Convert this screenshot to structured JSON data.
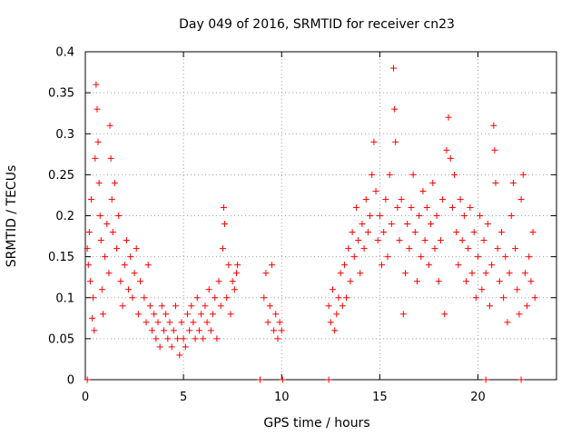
{
  "chart_data": {
    "type": "scatter",
    "title": "Day 049 of 2016, SRMTID for receiver cn23",
    "xlabel": "GPS time / hours",
    "ylabel": "SRMTID / TECUs",
    "xlim": [
      0,
      24
    ],
    "ylim": [
      0,
      0.4
    ],
    "xticks": [
      0,
      5,
      10,
      15,
      20
    ],
    "xtick_labels": [
      "0",
      "5",
      "10",
      "15",
      "20"
    ],
    "yticks": [
      0,
      0.05,
      0.1,
      0.15,
      0.2,
      0.25,
      0.3,
      0.35,
      0.4
    ],
    "ytick_labels": [
      "0",
      "0.05",
      "0.1",
      "0.15",
      "0.2",
      "0.25",
      "0.3",
      "0.35",
      "0.4"
    ],
    "grid": true,
    "marker": "+",
    "color": "#ff0000",
    "series": [
      {
        "name": "SRMTID",
        "points": [
          [
            0.1,
            0.16
          ],
          [
            0.15,
            0.14
          ],
          [
            0.2,
            0.18
          ],
          [
            0.25,
            0.12
          ],
          [
            0.3,
            0.22
          ],
          [
            0.35,
            0.075
          ],
          [
            0.4,
            0.1
          ],
          [
            0.45,
            0.06
          ],
          [
            0.5,
            0.27
          ],
          [
            0.55,
            0.36
          ],
          [
            0.6,
            0.33
          ],
          [
            0.65,
            0.29
          ],
          [
            0.7,
            0.24
          ],
          [
            0.75,
            0.2
          ],
          [
            0.8,
            0.17
          ],
          [
            0.85,
            0.11
          ],
          [
            0.9,
            0.08
          ],
          [
            1.0,
            0.15
          ],
          [
            1.1,
            0.19
          ],
          [
            1.2,
            0.13
          ],
          [
            1.25,
            0.31
          ],
          [
            1.3,
            0.27
          ],
          [
            1.35,
            0.22
          ],
          [
            1.4,
            0.18
          ],
          [
            1.5,
            0.24
          ],
          [
            1.6,
            0.16
          ],
          [
            1.7,
            0.2
          ],
          [
            1.8,
            0.12
          ],
          [
            1.9,
            0.09
          ],
          [
            2.0,
            0.14
          ],
          [
            2.1,
            0.17
          ],
          [
            2.2,
            0.11
          ],
          [
            2.3,
            0.15
          ],
          [
            2.4,
            0.1
          ],
          [
            2.5,
            0.13
          ],
          [
            2.6,
            0.16
          ],
          [
            2.7,
            0.08
          ],
          [
            2.8,
            0.12
          ],
          [
            3.0,
            0.1
          ],
          [
            3.1,
            0.07
          ],
          [
            3.2,
            0.14
          ],
          [
            3.3,
            0.09
          ],
          [
            3.4,
            0.06
          ],
          [
            3.5,
            0.08
          ],
          [
            3.6,
            0.05
          ],
          [
            3.7,
            0.07
          ],
          [
            3.8,
            0.04
          ],
          [
            3.9,
            0.09
          ],
          [
            4.0,
            0.06
          ],
          [
            4.1,
            0.08
          ],
          [
            4.2,
            0.05
          ],
          [
            4.3,
            0.07
          ],
          [
            4.4,
            0.04
          ],
          [
            4.5,
            0.06
          ],
          [
            4.6,
            0.09
          ],
          [
            4.7,
            0.05
          ],
          [
            4.8,
            0.03
          ],
          [
            4.9,
            0.07
          ],
          [
            5.0,
            0.05
          ],
          [
            5.1,
            0.04
          ],
          [
            5.2,
            0.08
          ],
          [
            5.3,
            0.06
          ],
          [
            5.4,
            0.09
          ],
          [
            5.5,
            0.07
          ],
          [
            5.6,
            0.05
          ],
          [
            5.7,
            0.1
          ],
          [
            5.8,
            0.06
          ],
          [
            5.9,
            0.08
          ],
          [
            6.0,
            0.05
          ],
          [
            6.1,
            0.09
          ],
          [
            6.2,
            0.07
          ],
          [
            6.3,
            0.11
          ],
          [
            6.4,
            0.06
          ],
          [
            6.5,
            0.08
          ],
          [
            6.6,
            0.1
          ],
          [
            6.7,
            0.05
          ],
          [
            6.8,
            0.12
          ],
          [
            6.9,
            0.09
          ],
          [
            7.0,
            0.16
          ],
          [
            7.05,
            0.21
          ],
          [
            7.1,
            0.19
          ],
          [
            7.2,
            0.1
          ],
          [
            7.3,
            0.14
          ],
          [
            7.4,
            0.08
          ],
          [
            7.5,
            0.12
          ],
          [
            7.6,
            0.11
          ],
          [
            7.7,
            0.13
          ],
          [
            7.75,
            0.14
          ],
          [
            9.1,
            0.1
          ],
          [
            9.2,
            0.13
          ],
          [
            9.3,
            0.07
          ],
          [
            9.4,
            0.09
          ],
          [
            9.5,
            0.14
          ],
          [
            9.6,
            0.06
          ],
          [
            9.7,
            0.08
          ],
          [
            9.8,
            0.05
          ],
          [
            9.9,
            0.07
          ],
          [
            10.0,
            0.06
          ],
          [
            12.4,
            0.09
          ],
          [
            12.5,
            0.07
          ],
          [
            12.6,
            0.11
          ],
          [
            12.7,
            0.06
          ],
          [
            12.8,
            0.08
          ],
          [
            12.9,
            0.1
          ],
          [
            13.0,
            0.13
          ],
          [
            13.1,
            0.09
          ],
          [
            13.2,
            0.14
          ],
          [
            13.3,
            0.1
          ],
          [
            13.4,
            0.16
          ],
          [
            13.5,
            0.12
          ],
          [
            13.6,
            0.18
          ],
          [
            13.7,
            0.15
          ],
          [
            13.8,
            0.21
          ],
          [
            13.9,
            0.17
          ],
          [
            14.0,
            0.13
          ],
          [
            14.1,
            0.19
          ],
          [
            14.2,
            0.16
          ],
          [
            14.3,
            0.22
          ],
          [
            14.4,
            0.18
          ],
          [
            14.5,
            0.2
          ],
          [
            14.6,
            0.25
          ],
          [
            14.7,
            0.29
          ],
          [
            14.8,
            0.23
          ],
          [
            14.9,
            0.17
          ],
          [
            15.0,
            0.2
          ],
          [
            15.1,
            0.14
          ],
          [
            15.2,
            0.18
          ],
          [
            15.3,
            0.22
          ],
          [
            15.4,
            0.15
          ],
          [
            15.5,
            0.25
          ],
          [
            15.6,
            0.19
          ],
          [
            15.7,
            0.38
          ],
          [
            15.75,
            0.33
          ],
          [
            15.8,
            0.29
          ],
          [
            15.9,
            0.21
          ],
          [
            16.0,
            0.17
          ],
          [
            16.1,
            0.22
          ],
          [
            16.2,
            0.08
          ],
          [
            16.3,
            0.13
          ],
          [
            16.4,
            0.19
          ],
          [
            16.5,
            0.16
          ],
          [
            16.6,
            0.21
          ],
          [
            16.7,
            0.25
          ],
          [
            16.8,
            0.18
          ],
          [
            16.9,
            0.12
          ],
          [
            17.0,
            0.2
          ],
          [
            17.1,
            0.15
          ],
          [
            17.2,
            0.23
          ],
          [
            17.3,
            0.17
          ],
          [
            17.4,
            0.21
          ],
          [
            17.5,
            0.14
          ],
          [
            17.6,
            0.19
          ],
          [
            17.7,
            0.24
          ],
          [
            17.8,
            0.16
          ],
          [
            17.9,
            0.2
          ],
          [
            18.0,
            0.12
          ],
          [
            18.1,
            0.17
          ],
          [
            18.2,
            0.22
          ],
          [
            18.3,
            0.08
          ],
          [
            18.4,
            0.28
          ],
          [
            18.5,
            0.32
          ],
          [
            18.6,
            0.27
          ],
          [
            18.7,
            0.21
          ],
          [
            18.8,
            0.25
          ],
          [
            18.9,
            0.18
          ],
          [
            19.0,
            0.14
          ],
          [
            19.1,
            0.22
          ],
          [
            19.2,
            0.17
          ],
          [
            19.3,
            0.2
          ],
          [
            19.4,
            0.12
          ],
          [
            19.5,
            0.16
          ],
          [
            19.6,
            0.21
          ],
          [
            19.7,
            0.13
          ],
          [
            19.8,
            0.18
          ],
          [
            19.9,
            0.1
          ],
          [
            20.0,
            0.15
          ],
          [
            20.1,
            0.2
          ],
          [
            20.2,
            0.11
          ],
          [
            20.3,
            0.17
          ],
          [
            20.4,
            0.13
          ],
          [
            20.5,
            0.19
          ],
          [
            20.6,
            0.09
          ],
          [
            20.7,
            0.14
          ],
          [
            20.8,
            0.31
          ],
          [
            20.85,
            0.28
          ],
          [
            20.9,
            0.24
          ],
          [
            21.0,
            0.16
          ],
          [
            21.1,
            0.12
          ],
          [
            21.2,
            0.18
          ],
          [
            21.3,
            0.1
          ],
          [
            21.4,
            0.15
          ],
          [
            21.5,
            0.07
          ],
          [
            21.6,
            0.13
          ],
          [
            21.7,
            0.2
          ],
          [
            21.8,
            0.24
          ],
          [
            21.9,
            0.16
          ],
          [
            22.0,
            0.11
          ],
          [
            22.1,
            0.08
          ],
          [
            22.2,
            0.22
          ],
          [
            22.3,
            0.25
          ],
          [
            22.4,
            0.13
          ],
          [
            22.5,
            0.09
          ],
          [
            22.6,
            0.15
          ],
          [
            22.7,
            0.12
          ],
          [
            22.8,
            0.18
          ],
          [
            22.9,
            0.1
          ]
        ]
      }
    ],
    "zero_markers": [
      0.1,
      8.9,
      10.05,
      12.4,
      20.4,
      22.2
    ]
  }
}
